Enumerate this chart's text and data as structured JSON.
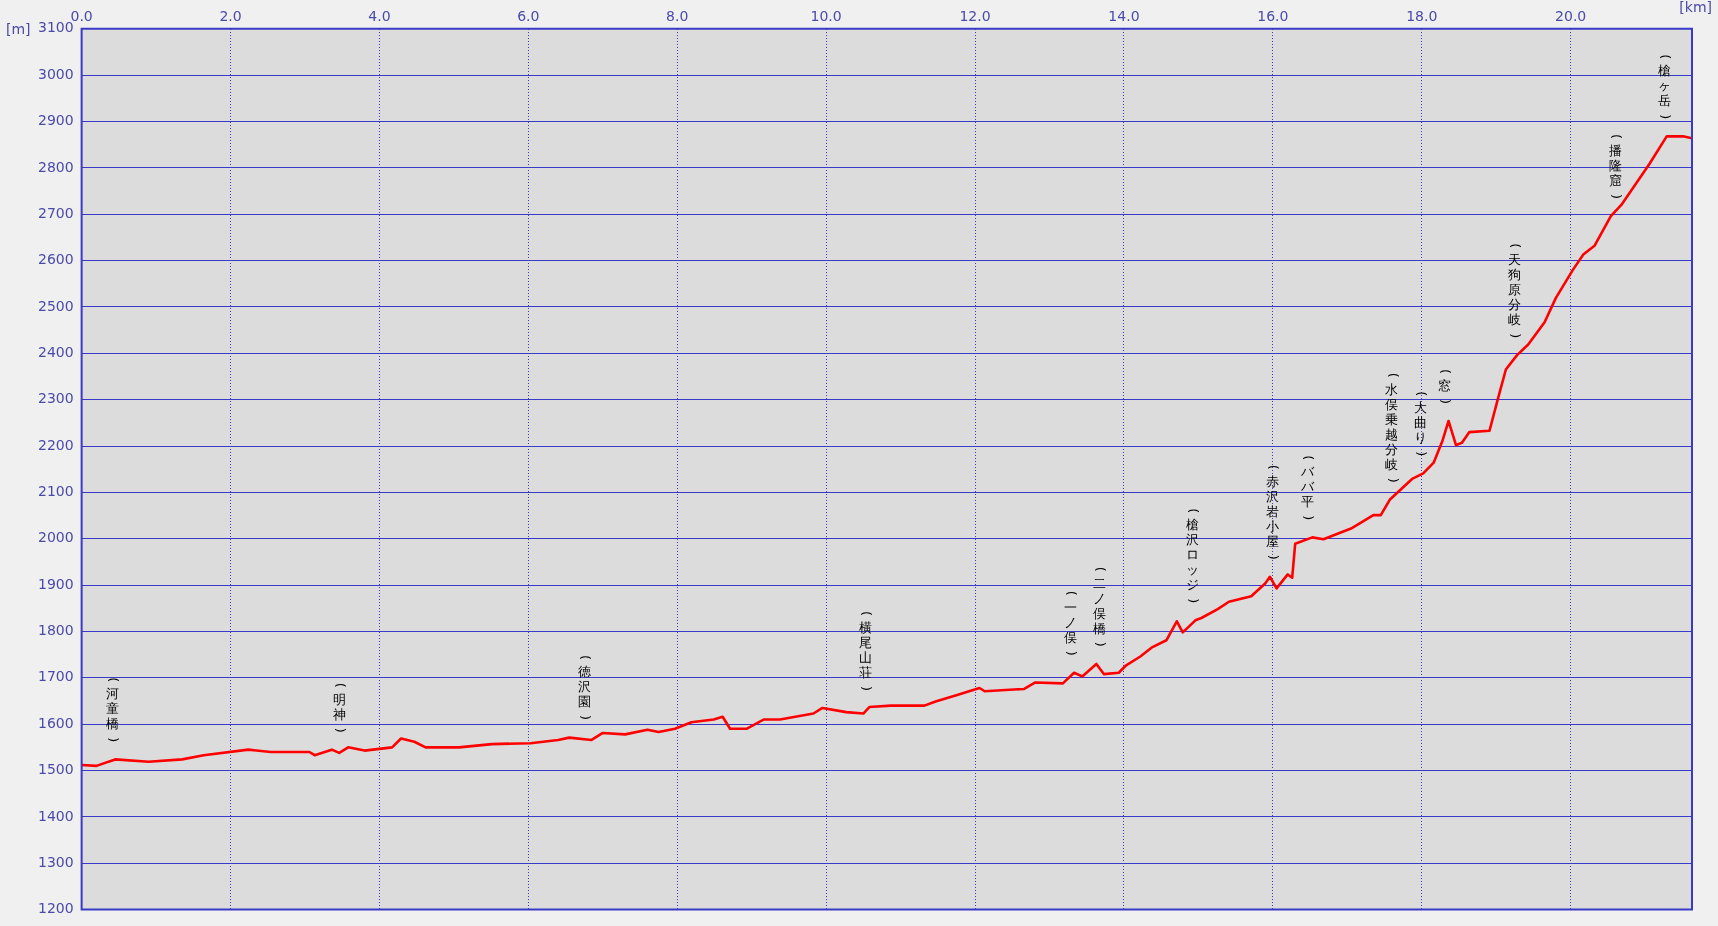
{
  "chart_data": {
    "type": "line",
    "xlabel": "[km]",
    "ylabel": "[m]",
    "xlim": [
      0,
      21.63
    ],
    "xticks": [
      {
        "value": 0,
        "label": "0.0"
      },
      {
        "value": 2,
        "label": "2.0"
      },
      {
        "value": 4,
        "label": "4.0"
      },
      {
        "value": 6,
        "label": "6.0"
      },
      {
        "value": 8,
        "label": "8.0"
      },
      {
        "value": 10,
        "label": "10.0"
      },
      {
        "value": 12,
        "label": "12.0"
      },
      {
        "value": 14,
        "label": "14.0"
      },
      {
        "value": 16,
        "label": "16.0"
      },
      {
        "value": 18,
        "label": "18.0"
      },
      {
        "value": 20,
        "label": "20.0"
      }
    ],
    "ylim": [
      1200,
      3100
    ],
    "yticks": [
      1200,
      1300,
      1400,
      1500,
      1600,
      1700,
      1800,
      1900,
      2000,
      2100,
      2200,
      2300,
      2400,
      2500,
      2600,
      2700,
      2800,
      2900,
      3000,
      3100
    ],
    "grid": true,
    "legend": false,
    "marker": "none",
    "line_style": "solid",
    "series": [
      {
        "color": "#ff0000",
        "x": [
          0,
          0.2,
          0.45,
          0.9,
          1.35,
          1.64,
          2.24,
          2.54,
          3.06,
          3.13,
          3.36,
          3.46,
          3.58,
          3.8,
          4.17,
          4.29,
          4.47,
          4.62,
          5.07,
          5.51,
          6.03,
          6.4,
          6.55,
          6.85,
          7.0,
          7.3,
          7.6,
          7.75,
          7.97,
          8.19,
          8.49,
          8.61,
          8.71,
          8.93,
          9.16,
          9.38,
          9.83,
          9.95,
          10.27,
          10.5,
          10.58,
          10.87,
          11.32,
          11.47,
          11.76,
          12.06,
          12.13,
          12.66,
          12.81,
          13.18,
          13.33,
          13.44,
          13.63,
          13.73,
          13.93,
          14.03,
          14.22,
          14.37,
          14.57,
          14.71,
          14.79,
          14.96,
          15.04,
          15.26,
          15.41,
          15.71,
          15.9,
          15.96,
          16.05,
          16.2,
          16.26,
          16.3,
          16.53,
          16.68,
          17.05,
          17.35,
          17.45,
          17.57,
          17.87,
          18.02,
          18.16,
          18.28,
          18.36,
          18.46,
          18.54,
          18.64,
          18.91,
          19.03,
          19.13,
          19.28,
          19.43,
          19.65,
          19.8,
          20.03,
          20.17,
          20.32,
          20.54,
          20.69,
          21.06,
          21.29,
          21.51,
          21.63
        ],
        "values": [
          1512,
          1510,
          1524,
          1519,
          1524,
          1533,
          1545,
          1540,
          1540,
          1533,
          1545,
          1538,
          1550,
          1543,
          1550,
          1569,
          1562,
          1550,
          1550,
          1557,
          1559,
          1566,
          1571,
          1566,
          1581,
          1578,
          1588,
          1583,
          1590,
          1604,
          1610,
          1616,
          1590,
          1590,
          1610,
          1610,
          1623,
          1635,
          1626,
          1623,
          1637,
          1640,
          1640,
          1649,
          1663,
          1678,
          1671,
          1676,
          1690,
          1688,
          1711,
          1703,
          1730,
          1708,
          1711,
          1727,
          1746,
          1765,
          1781,
          1822,
          1798,
          1824,
          1829,
          1848,
          1864,
          1876,
          1904,
          1918,
          1893,
          1923,
          1916,
          1989,
          2003,
          1999,
          2022,
          2051,
          2051,
          2084,
          2129,
          2141,
          2164,
          2212,
          2254,
          2202,
          2207,
          2230,
          2233,
          2306,
          2365,
          2396,
          2419,
          2467,
          2519,
          2580,
          2613,
          2632,
          2696,
          2722,
          2809,
          2868,
          2868,
          2864
        ]
      }
    ],
    "annotations": [
      {
        "text": "(河童橋)",
        "x": 0.41,
        "y": 1524
      },
      {
        "text": "(明神)",
        "x": 3.46,
        "y": 1545
      },
      {
        "text": "(徳沢園)",
        "x": 6.75,
        "y": 1572
      },
      {
        "text": "(横尾山荘)",
        "x": 10.53,
        "y": 1635
      },
      {
        "text": "(一ノ俣)",
        "x": 13.28,
        "y": 1711
      },
      {
        "text": "(二ノ俣橋)",
        "x": 13.67,
        "y": 1730
      },
      {
        "text": "(槍沢ロッジ)",
        "x": 14.92,
        "y": 1824
      },
      {
        "text": "(赤沢岩小屋)",
        "x": 16.0,
        "y": 1918
      },
      {
        "text": "(ババ平)",
        "x": 16.47,
        "y": 2003
      },
      {
        "text": "(水俣乗越分岐)",
        "x": 17.6,
        "y": 2084
      },
      {
        "text": "(大曲り)",
        "x": 17.98,
        "y": 2141
      },
      {
        "text": "(窓)",
        "x": 18.31,
        "y": 2254
      },
      {
        "text": "(天狗原分岐)",
        "x": 19.25,
        "y": 2396
      },
      {
        "text": "(播隆窟)",
        "x": 20.6,
        "y": 2696
      },
      {
        "text": "(槍ヶ岳)",
        "x": 21.26,
        "y": 2868
      }
    ]
  }
}
